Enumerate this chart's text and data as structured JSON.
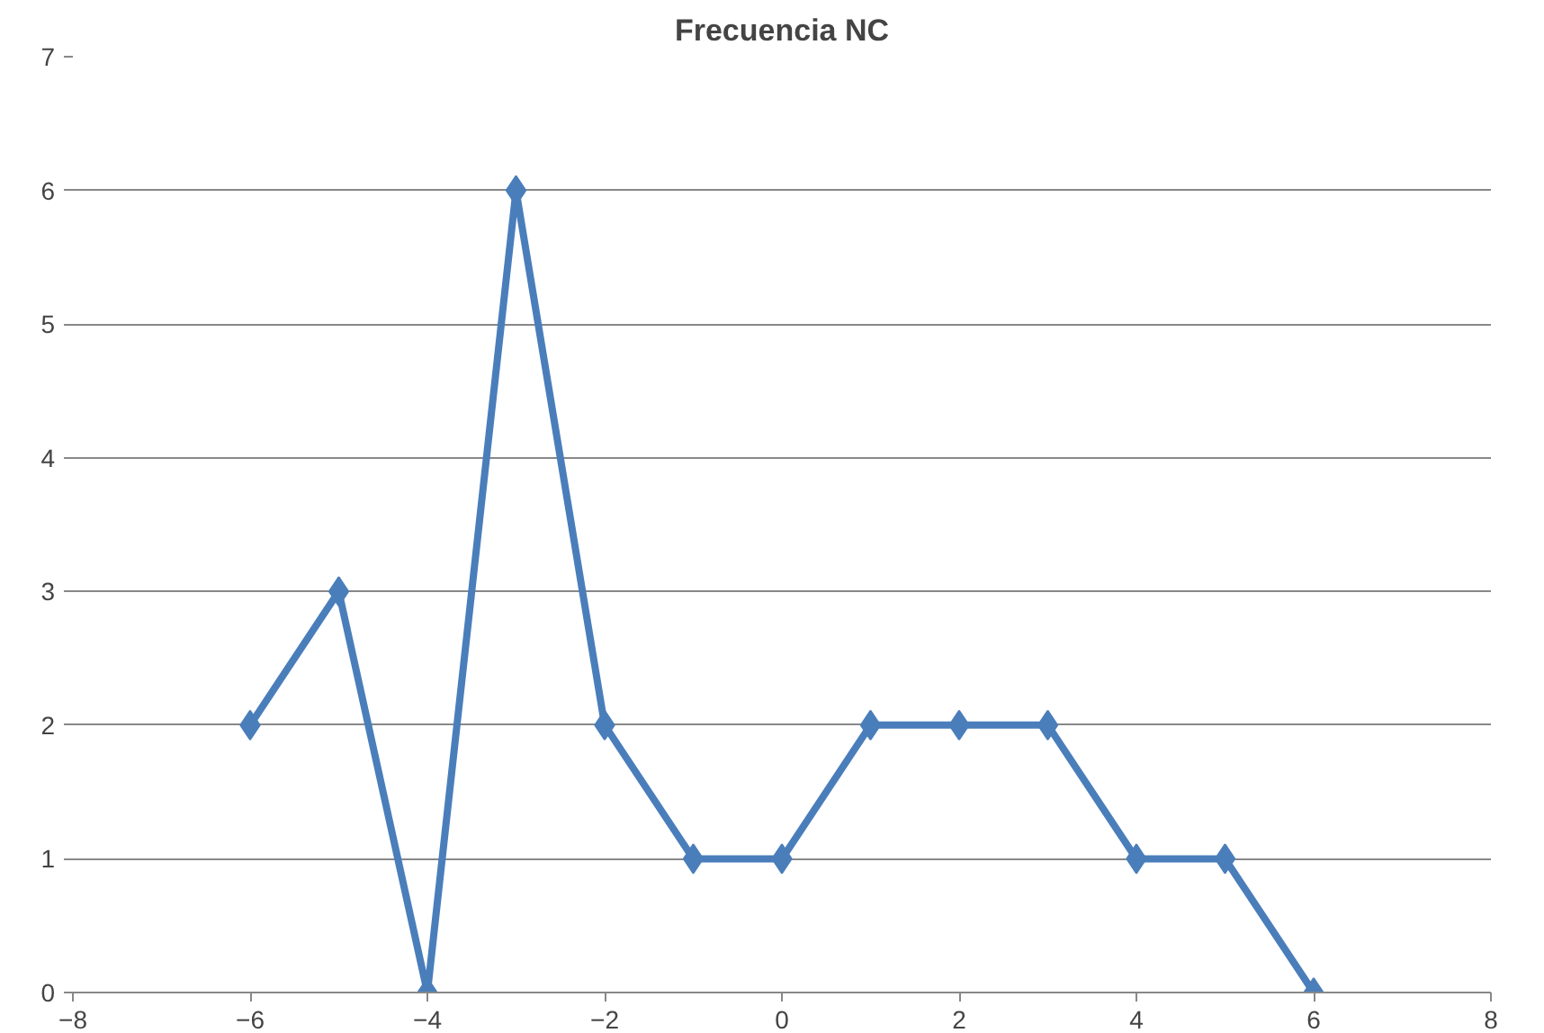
{
  "chart_data": {
    "type": "line",
    "title": "Frecuencia NC",
    "x": [
      -6,
      -5,
      -4,
      -3,
      -2,
      -1,
      0,
      1,
      2,
      3,
      4,
      5,
      6
    ],
    "series": [
      {
        "color": "#4a7ebb",
        "values": [
          2,
          3,
          0,
          6,
          2,
          1,
          1,
          2,
          2,
          2,
          1,
          1,
          0
        ]
      }
    ],
    "xlim": [
      -8,
      8
    ],
    "xticks": [
      -8,
      -6,
      -4,
      -2,
      0,
      2,
      4,
      6,
      8
    ],
    "ylim": [
      0,
      7
    ],
    "yticks": [
      0,
      1,
      2,
      3,
      4,
      5,
      6,
      7
    ],
    "grid": "y",
    "marker": "diamond",
    "line_style": "solid"
  }
}
